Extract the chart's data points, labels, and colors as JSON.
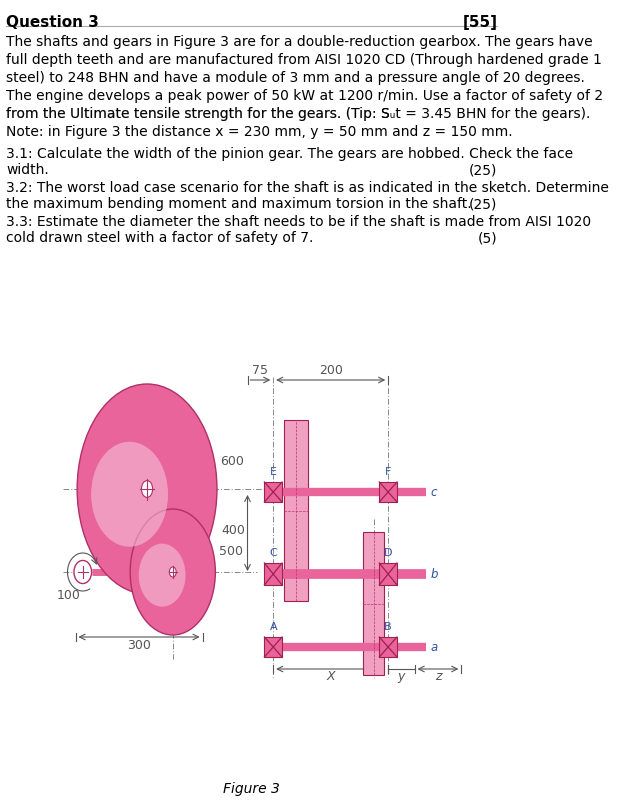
{
  "title": "Question 3",
  "marks": "[55]",
  "body_text": [
    "The shafts and gears in Figure 3 are for a double-reduction gearbox. The gears have",
    "full depth teeth and are manufactured from AISI 1020 CD (Through hardened grade 1",
    "steel) to 248 BHN and have a module of 3 mm and a pressure angle of 20 degrees.",
    "The engine develops a peak power of 50 kW at 1200 r/min. Use a factor of safety of 2",
    "from the Ultimate tensile strength for the gears. (Tip: Sut = 3.45 BHN for the gears).",
    "Note: in Figure 3 the distance x = 230 mm, y = 50 mm and z = 150 mm."
  ],
  "q31a": "3.1: Calculate the width of the pinion gear. The gears are hobbed. Check the face",
  "q31b": "width.",
  "q31_marks": "(25)",
  "q32a": "3.2: The worst load case scenario for the shaft is as indicated in the sketch. Determine",
  "q32b": "the maximum bending moment and maximum torsion in the shaft.",
  "q32_marks": "(25)",
  "q33a": "3.3: Estimate the diameter the shaft needs to be if the shaft is made from AISI 1020",
  "q33b": "cold drawn steel with a factor of safety of 7.",
  "q33_marks": "(5)",
  "figure_caption": "Figure 3",
  "bg_color": "#ffffff",
  "text_color": "#000000",
  "gear_pink": "#e8649a",
  "gear_pink_light": "#f0a0c0",
  "gear_pink_highlight": "#f5c8dc",
  "dim_color": "#555555",
  "label_color": "#3050a0",
  "line_color": "#888888"
}
